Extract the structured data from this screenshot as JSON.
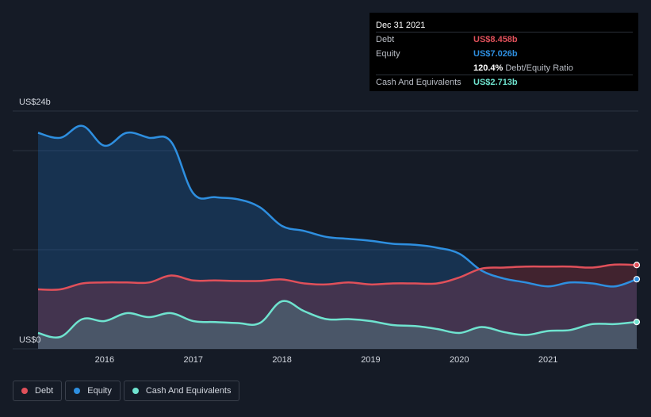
{
  "tooltip": {
    "date": "Dec 31 2021",
    "debt_label": "Debt",
    "debt_value": "US$8.458b",
    "equity_label": "Equity",
    "equity_value": "US$7.026b",
    "ratio_value": "120.4%",
    "ratio_label": "Debt/Equity Ratio",
    "cash_label": "Cash And Equivalents",
    "cash_value": "US$2.713b"
  },
  "legend": {
    "debt": "Debt",
    "equity": "Equity",
    "cash": "Cash And Equivalents"
  },
  "colors": {
    "debt": "#e0505a",
    "equity": "#2e8fe0",
    "cash": "#6fe3cf",
    "background": "#151b26"
  },
  "chart_data": {
    "type": "area",
    "title": "",
    "xlabel": "",
    "ylabel": "",
    "y_top_label": "US$24b",
    "y_bottom_label": "US$0",
    "ylim": [
      0,
      24
    ],
    "xlim": [
      2015.25,
      2022.0
    ],
    "x_ticks": [
      2016,
      2017,
      2018,
      2019,
      2020,
      2021
    ],
    "x_tick_labels": [
      "2016",
      "2017",
      "2018",
      "2019",
      "2020",
      "2021"
    ],
    "grid": true,
    "series": [
      {
        "name": "Equity",
        "key": "equity",
        "x": [
          2015.25,
          2015.5,
          2015.75,
          2016.0,
          2016.25,
          2016.5,
          2016.75,
          2017.0,
          2017.25,
          2017.5,
          2017.75,
          2018.0,
          2018.25,
          2018.5,
          2018.75,
          2019.0,
          2019.25,
          2019.5,
          2019.75,
          2020.0,
          2020.25,
          2020.5,
          2020.75,
          2021.0,
          2021.25,
          2021.5,
          2021.75,
          2022.0
        ],
        "values": [
          21.8,
          21.3,
          22.5,
          20.5,
          21.8,
          21.3,
          20.9,
          15.7,
          15.3,
          15.1,
          14.3,
          12.4,
          11.9,
          11.3,
          11.1,
          10.9,
          10.6,
          10.5,
          10.2,
          9.6,
          7.9,
          7.1,
          6.7,
          6.3,
          6.7,
          6.6,
          6.3,
          7.026
        ]
      },
      {
        "name": "Debt",
        "key": "debt",
        "x": [
          2015.25,
          2015.5,
          2015.75,
          2016.0,
          2016.25,
          2016.5,
          2016.75,
          2017.0,
          2017.25,
          2017.5,
          2017.75,
          2018.0,
          2018.25,
          2018.5,
          2018.75,
          2019.0,
          2019.25,
          2019.5,
          2019.75,
          2020.0,
          2020.25,
          2020.5,
          2020.75,
          2021.0,
          2021.25,
          2021.5,
          2021.75,
          2022.0
        ],
        "values": [
          6.0,
          6.0,
          6.6,
          6.7,
          6.7,
          6.7,
          7.4,
          6.9,
          6.9,
          6.85,
          6.85,
          7.0,
          6.6,
          6.5,
          6.7,
          6.5,
          6.6,
          6.6,
          6.6,
          7.2,
          8.1,
          8.2,
          8.3,
          8.3,
          8.3,
          8.2,
          8.5,
          8.458
        ]
      },
      {
        "name": "Cash And Equivalents",
        "key": "cash",
        "x": [
          2015.25,
          2015.5,
          2015.75,
          2016.0,
          2016.25,
          2016.5,
          2016.75,
          2017.0,
          2017.25,
          2017.5,
          2017.75,
          2018.0,
          2018.25,
          2018.5,
          2018.75,
          2019.0,
          2019.25,
          2019.5,
          2019.75,
          2020.0,
          2020.25,
          2020.5,
          2020.75,
          2021.0,
          2021.25,
          2021.5,
          2021.75,
          2022.0
        ],
        "values": [
          1.6,
          1.2,
          3.0,
          2.8,
          3.6,
          3.2,
          3.6,
          2.8,
          2.7,
          2.6,
          2.6,
          4.8,
          3.8,
          3.0,
          3.0,
          2.8,
          2.4,
          2.3,
          2.0,
          1.6,
          2.2,
          1.7,
          1.4,
          1.8,
          1.9,
          2.5,
          2.5,
          2.713
        ]
      }
    ]
  }
}
